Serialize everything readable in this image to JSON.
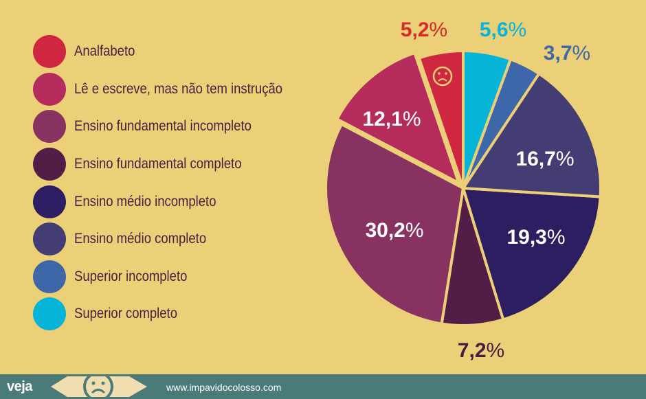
{
  "chart_data": {
    "type": "pie",
    "categories": [
      "Analfabeto",
      "Lê e escreve, mas não tem instrução",
      "Ensino fundamental incompleto",
      "Ensino fundamental completo",
      "Ensino médio incompleto",
      "Ensino médio completo",
      "Superior incompleto",
      "Superior completo"
    ],
    "values": [
      5.2,
      12.1,
      30.2,
      7.2,
      19.3,
      16.7,
      3.7,
      5.6
    ],
    "value_labels": [
      "5,2%",
      "12,1%",
      "30,2%",
      "7,2%",
      "19,3%",
      "16,7%",
      "3,7%",
      "5,6%"
    ],
    "colors": [
      "#cf2740",
      "#b52c5c",
      "#883262",
      "#521e48",
      "#2d1e61",
      "#433d74",
      "#3d67a8",
      "#06b4d8"
    ],
    "legend_placement": "left"
  },
  "annotation": {
    "sad_face_slice": "Analfabeto"
  },
  "footer": {
    "brand": "veja",
    "site": "www.impavidocolosso.com",
    "icons": [
      "previous-arrow-icon",
      "sad-face-icon",
      "next-arrow-icon"
    ]
  }
}
